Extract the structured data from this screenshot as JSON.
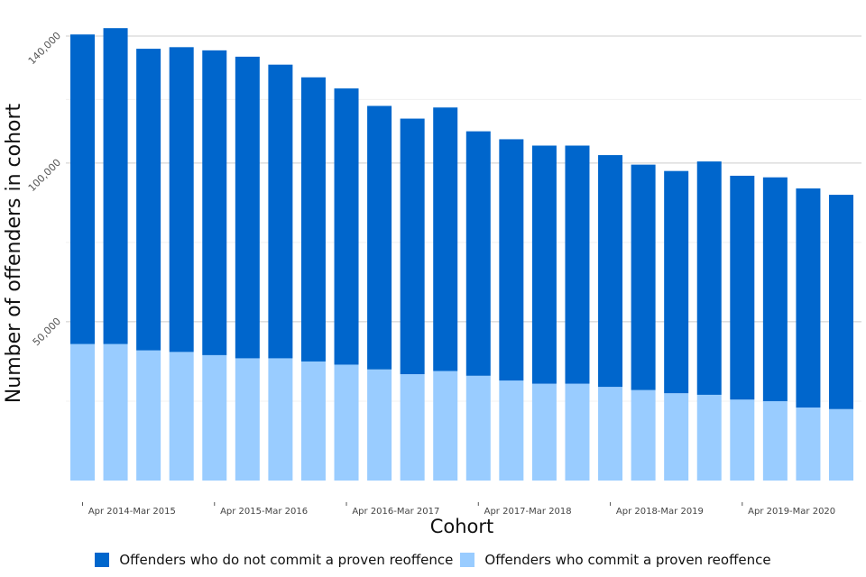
{
  "chart_data": {
    "type": "bar",
    "stacked": true,
    "title": "",
    "xlabel": "Cohort",
    "ylabel": "Number of offenders in cohort",
    "ylim": [
      0,
      140000
    ],
    "y_ticks": [
      50000,
      100000,
      140000
    ],
    "y_tick_labels": [
      "50,000",
      "100,000",
      "140,000"
    ],
    "minor_gridlines": [
      25000,
      75000,
      120000
    ],
    "grid": true,
    "legend": "bottom",
    "bar_count": 24,
    "x_group_labels": [
      {
        "label": "Apr 2014-Mar 2015",
        "start": 0,
        "end": 3
      },
      {
        "label": "Apr 2015-Mar 2016",
        "start": 4,
        "end": 7
      },
      {
        "label": "Apr 2016-Mar 2017",
        "start": 8,
        "end": 11
      },
      {
        "label": "Apr 2017-Mar 2018",
        "start": 12,
        "end": 15
      },
      {
        "label": "Apr 2018-Mar 2019",
        "start": 16,
        "end": 19
      },
      {
        "label": "Apr 2019-Mar 2020",
        "start": 20,
        "end": 23
      }
    ],
    "series": [
      {
        "name": "Offenders who do not commit a proven reoffence",
        "color": "#0066cc",
        "values": [
          97500,
          99500,
          95000,
          96000,
          96000,
          95000,
          92500,
          89500,
          87000,
          83000,
          80500,
          83000,
          77000,
          76000,
          75000,
          75000,
          73000,
          71000,
          70000,
          73500,
          70500,
          70500,
          69000,
          67500
        ]
      },
      {
        "name": "Offenders who commit a proven reoffence",
        "color": "#99ccff",
        "values": [
          43000,
          43000,
          41000,
          40500,
          39500,
          38500,
          38500,
          37500,
          36500,
          35000,
          33500,
          34500,
          33000,
          31500,
          30500,
          30500,
          29500,
          28500,
          27500,
          27000,
          25500,
          25000,
          23000,
          22500
        ]
      }
    ]
  }
}
